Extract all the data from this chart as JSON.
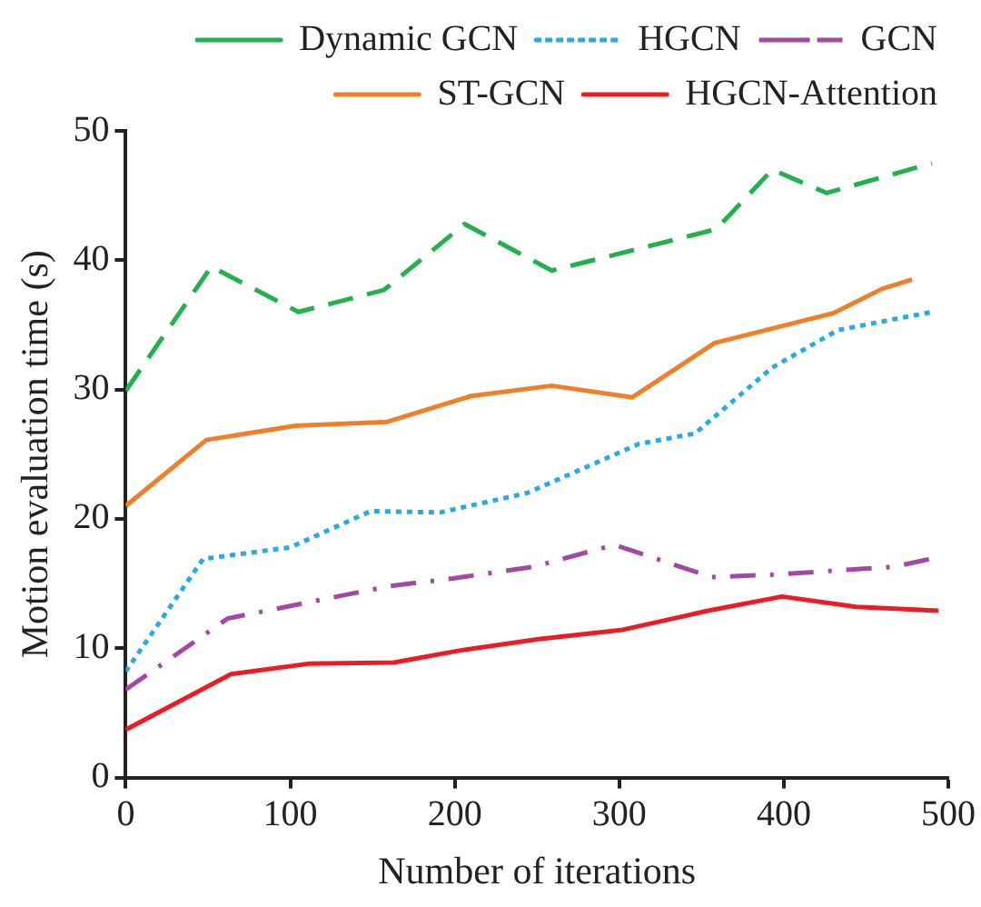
{
  "chart_data": {
    "type": "line",
    "xlabel": "Number of iterations",
    "ylabel": "Motion evaluation time (s)",
    "xlim": [
      0,
      500
    ],
    "xticks": [
      0,
      100,
      200,
      300,
      400,
      500
    ],
    "ylim": [
      0,
      50
    ],
    "yticks": [
      0,
      10,
      20,
      30,
      40,
      50
    ],
    "grid": false,
    "legend": "top",
    "marker": "none",
    "series": [
      {
        "name": "Dynamic GCN",
        "color": "#22b14c",
        "line_style": "dashed",
        "x": [
          0,
          52,
          105,
          157,
          206,
          259,
          359,
          393,
          426,
          490
        ],
        "values": [
          29.9,
          39.5,
          36.0,
          37.7,
          42.8,
          39.2,
          42.4,
          47.0,
          45.2,
          47.5
        ]
      },
      {
        "name": "HGCN",
        "color": "#29abe2",
        "line_style": "dotted",
        "x": [
          0,
          47,
          100,
          149,
          191,
          244,
          312,
          346,
          393,
          433,
          490
        ],
        "values": [
          8.2,
          16.9,
          17.8,
          20.6,
          20.5,
          22.0,
          25.8,
          26.6,
          31.7,
          34.6,
          36.0
        ]
      },
      {
        "name": "GCN",
        "color": "#a349a4",
        "line_style": "dashdot",
        "x": [
          0,
          62,
          160,
          199,
          248,
          297,
          356,
          395,
          467,
          489
        ],
        "values": [
          6.8,
          12.3,
          14.8,
          15.4,
          16.3,
          18.0,
          15.5,
          15.7,
          16.3,
          16.9
        ]
      },
      {
        "name": "ST-GCN",
        "color": "#f07f2a",
        "line_style": "solid",
        "x": [
          0,
          49,
          103,
          159,
          210,
          259,
          308,
          358,
          430,
          460,
          478
        ],
        "values": [
          21.0,
          26.1,
          27.2,
          27.5,
          29.5,
          30.3,
          29.4,
          33.6,
          35.9,
          37.8,
          38.5
        ]
      },
      {
        "name": "HGCN-Attention",
        "color": "#ed1c24",
        "line_style": "solid",
        "x": [
          0,
          64,
          111,
          163,
          202,
          251,
          301,
          354,
          399,
          444,
          494
        ],
        "values": [
          3.7,
          8.0,
          8.8,
          8.9,
          9.8,
          10.7,
          11.4,
          12.9,
          14.0,
          13.2,
          12.9
        ]
      }
    ]
  }
}
